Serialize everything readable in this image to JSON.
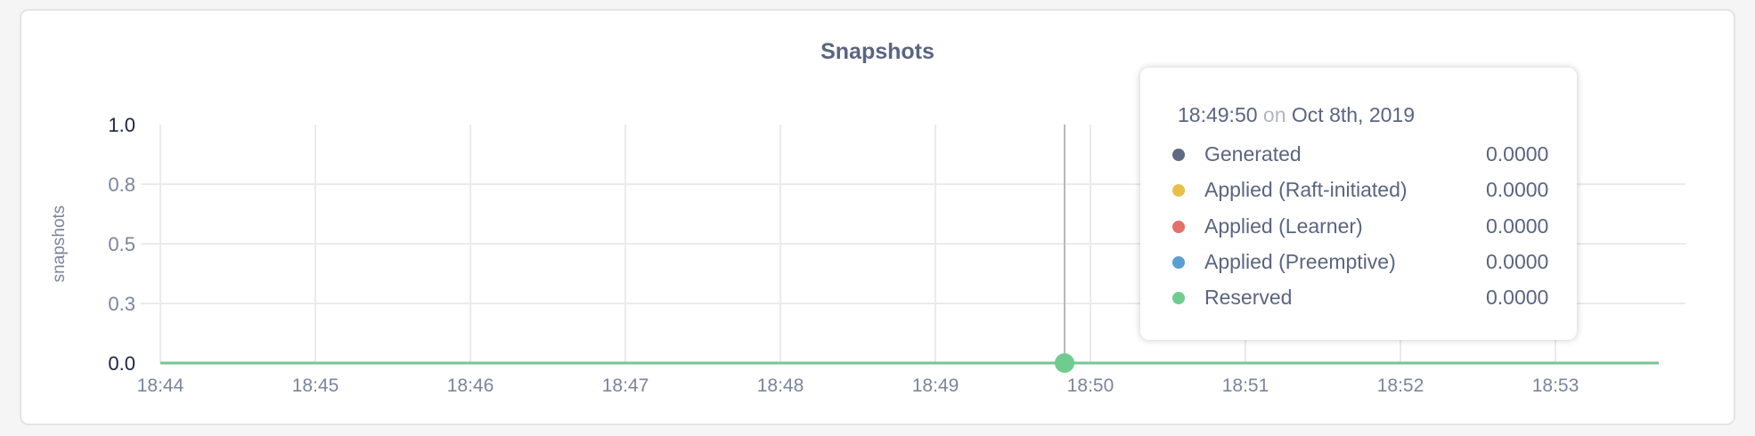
{
  "chart_data": {
    "type": "line",
    "title": "Snapshots",
    "ylabel": "snapshots",
    "xlabel": "",
    "x_ticks": [
      "18:44",
      "18:45",
      "18:46",
      "18:47",
      "18:48",
      "18:49",
      "18:50",
      "18:51",
      "18:52",
      "18:53"
    ],
    "y_ticks": [
      {
        "value": 0,
        "label": "0.0"
      },
      {
        "value": 0.25,
        "label": "0.3"
      },
      {
        "value": 0.5,
        "label": "0.5"
      },
      {
        "value": 0.75,
        "label": "0.8"
      },
      {
        "value": 1,
        "label": "1.0"
      }
    ],
    "ylim": [
      0,
      1
    ],
    "xlim": [
      "18:44",
      "18:53:40"
    ],
    "grid": true,
    "series": [
      {
        "name": "Generated",
        "color": "#5f6b85",
        "values": [
          0,
          0,
          0,
          0,
          0,
          0,
          0,
          0,
          0,
          0
        ]
      },
      {
        "name": "Applied (Raft-initiated)",
        "color": "#ebbf47",
        "values": [
          0,
          0,
          0,
          0,
          0,
          0,
          0,
          0,
          0,
          0
        ]
      },
      {
        "name": "Applied (Learner)",
        "color": "#e4706a",
        "values": [
          0,
          0,
          0,
          0,
          0,
          0,
          0,
          0,
          0,
          0
        ]
      },
      {
        "name": "Applied (Preemptive)",
        "color": "#5b9fd2",
        "values": [
          0,
          0,
          0,
          0,
          0,
          0,
          0,
          0,
          0,
          0
        ]
      },
      {
        "name": "Reserved",
        "color": "#6fcc8f",
        "values": [
          0,
          0,
          0,
          0,
          0,
          0,
          0,
          0,
          0,
          0
        ]
      }
    ],
    "hover_x": "18:49:50"
  },
  "tooltip": {
    "time": "18:49:50",
    "on": "on",
    "date": "Oct 8th, 2019",
    "rows": [
      {
        "label": "Generated",
        "value": "0.0000",
        "color": "#5f6b85"
      },
      {
        "label": "Applied (Raft-initiated)",
        "value": "0.0000",
        "color": "#ebbf47"
      },
      {
        "label": "Applied (Learner)",
        "value": "0.0000",
        "color": "#e4706a"
      },
      {
        "label": "Applied (Preemptive)",
        "value": "0.0000",
        "color": "#5b9fd2"
      },
      {
        "label": "Reserved",
        "value": "0.0000",
        "color": "#6fcc8f"
      }
    ]
  }
}
